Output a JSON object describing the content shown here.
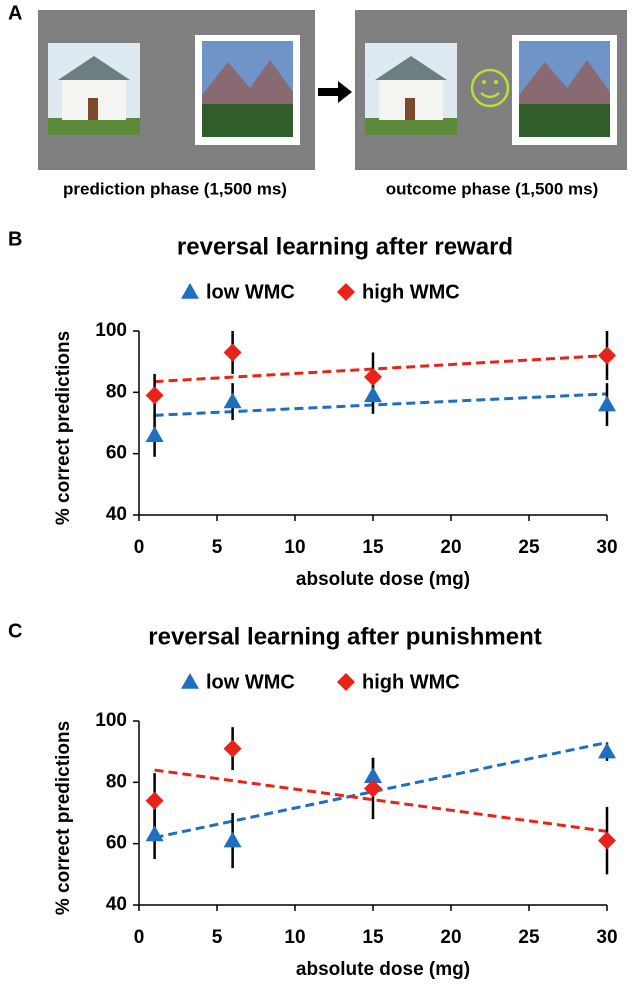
{
  "panel_labels": [
    "A",
    "B",
    "C"
  ],
  "panel_a": {
    "captions": [
      "prediction phase (1,500 ms)",
      "outcome phase (1,500 ms)"
    ]
  },
  "chart_data": [
    {
      "type": "scatter",
      "title": "reversal learning after reward",
      "x_label": "absolute dose (mg)",
      "y_label": "% correct predictions",
      "x": [
        1,
        6,
        15,
        30
      ],
      "series": [
        {
          "name": "low WMC",
          "color": "#1f6fc0",
          "marker": "triangle",
          "values": [
            66,
            77,
            79,
            76
          ],
          "errors": [
            7,
            6,
            6,
            7
          ],
          "trend_values": [
            72.5,
            79.5
          ]
        },
        {
          "name": "high WMC",
          "color": "#e8231a",
          "marker": "diamond",
          "values": [
            79,
            93,
            85,
            92
          ],
          "errors": [
            7,
            7,
            8,
            8
          ],
          "trend_values": [
            83.5,
            92
          ]
        }
      ],
      "xlim": [
        0,
        30
      ],
      "xticks": [
        0,
        5,
        10,
        15,
        20,
        25,
        30
      ],
      "ylim": [
        40,
        100
      ],
      "yticks": [
        40,
        60,
        80,
        100
      ],
      "legend": "top"
    },
    {
      "type": "scatter",
      "title": "reversal learning after punishment",
      "x_label": "absolute dose (mg)",
      "y_label": "% correct predictions",
      "x": [
        1,
        6,
        15,
        30
      ],
      "series": [
        {
          "name": "low WMC",
          "color": "#1f6fc0",
          "marker": "triangle",
          "values": [
            63,
            61,
            82,
            90
          ],
          "errors": [
            8,
            9,
            6,
            3
          ],
          "trend_values": [
            62,
            93
          ]
        },
        {
          "name": "high WMC",
          "color": "#e8231a",
          "marker": "diamond",
          "values": [
            74,
            91,
            78,
            61
          ],
          "errors": [
            9,
            7,
            10,
            11
          ],
          "trend_values": [
            84,
            64
          ]
        }
      ],
      "xlim": [
        0,
        30
      ],
      "xticks": [
        0,
        5,
        10,
        15,
        20,
        25,
        30
      ],
      "ylim": [
        40,
        100
      ],
      "yticks": [
        40,
        60,
        80,
        100
      ],
      "legend": "top"
    }
  ]
}
